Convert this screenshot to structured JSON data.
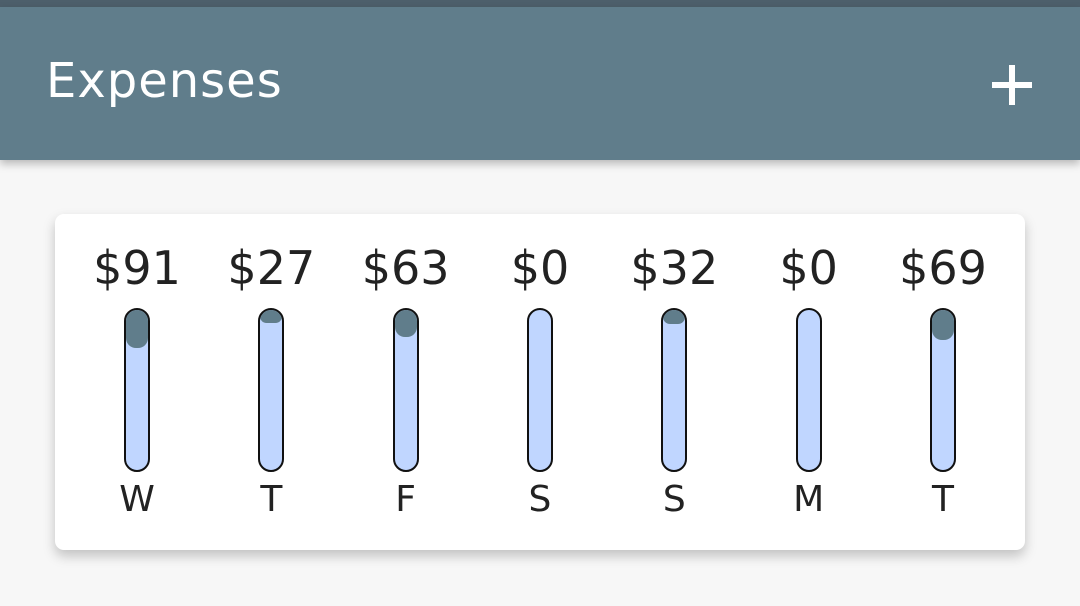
{
  "app_bar": {
    "title": "Expenses",
    "add_icon": "plus-icon"
  },
  "colors": {
    "primary": "#607d8b",
    "bar_track": "#c0d6ff",
    "background": "#f7f7f7"
  },
  "chart_data": {
    "type": "bar",
    "categories": [
      "W",
      "T",
      "F",
      "S",
      "S",
      "M",
      "T"
    ],
    "amount_labels": [
      "$91",
      "$27",
      "$63",
      "$0",
      "$32",
      "$0",
      "$69"
    ],
    "values": [
      91,
      27,
      63,
      0,
      32,
      0,
      69
    ],
    "fill_fraction": [
      0.24,
      0.08,
      0.17,
      0,
      0.09,
      0,
      0.19
    ]
  }
}
